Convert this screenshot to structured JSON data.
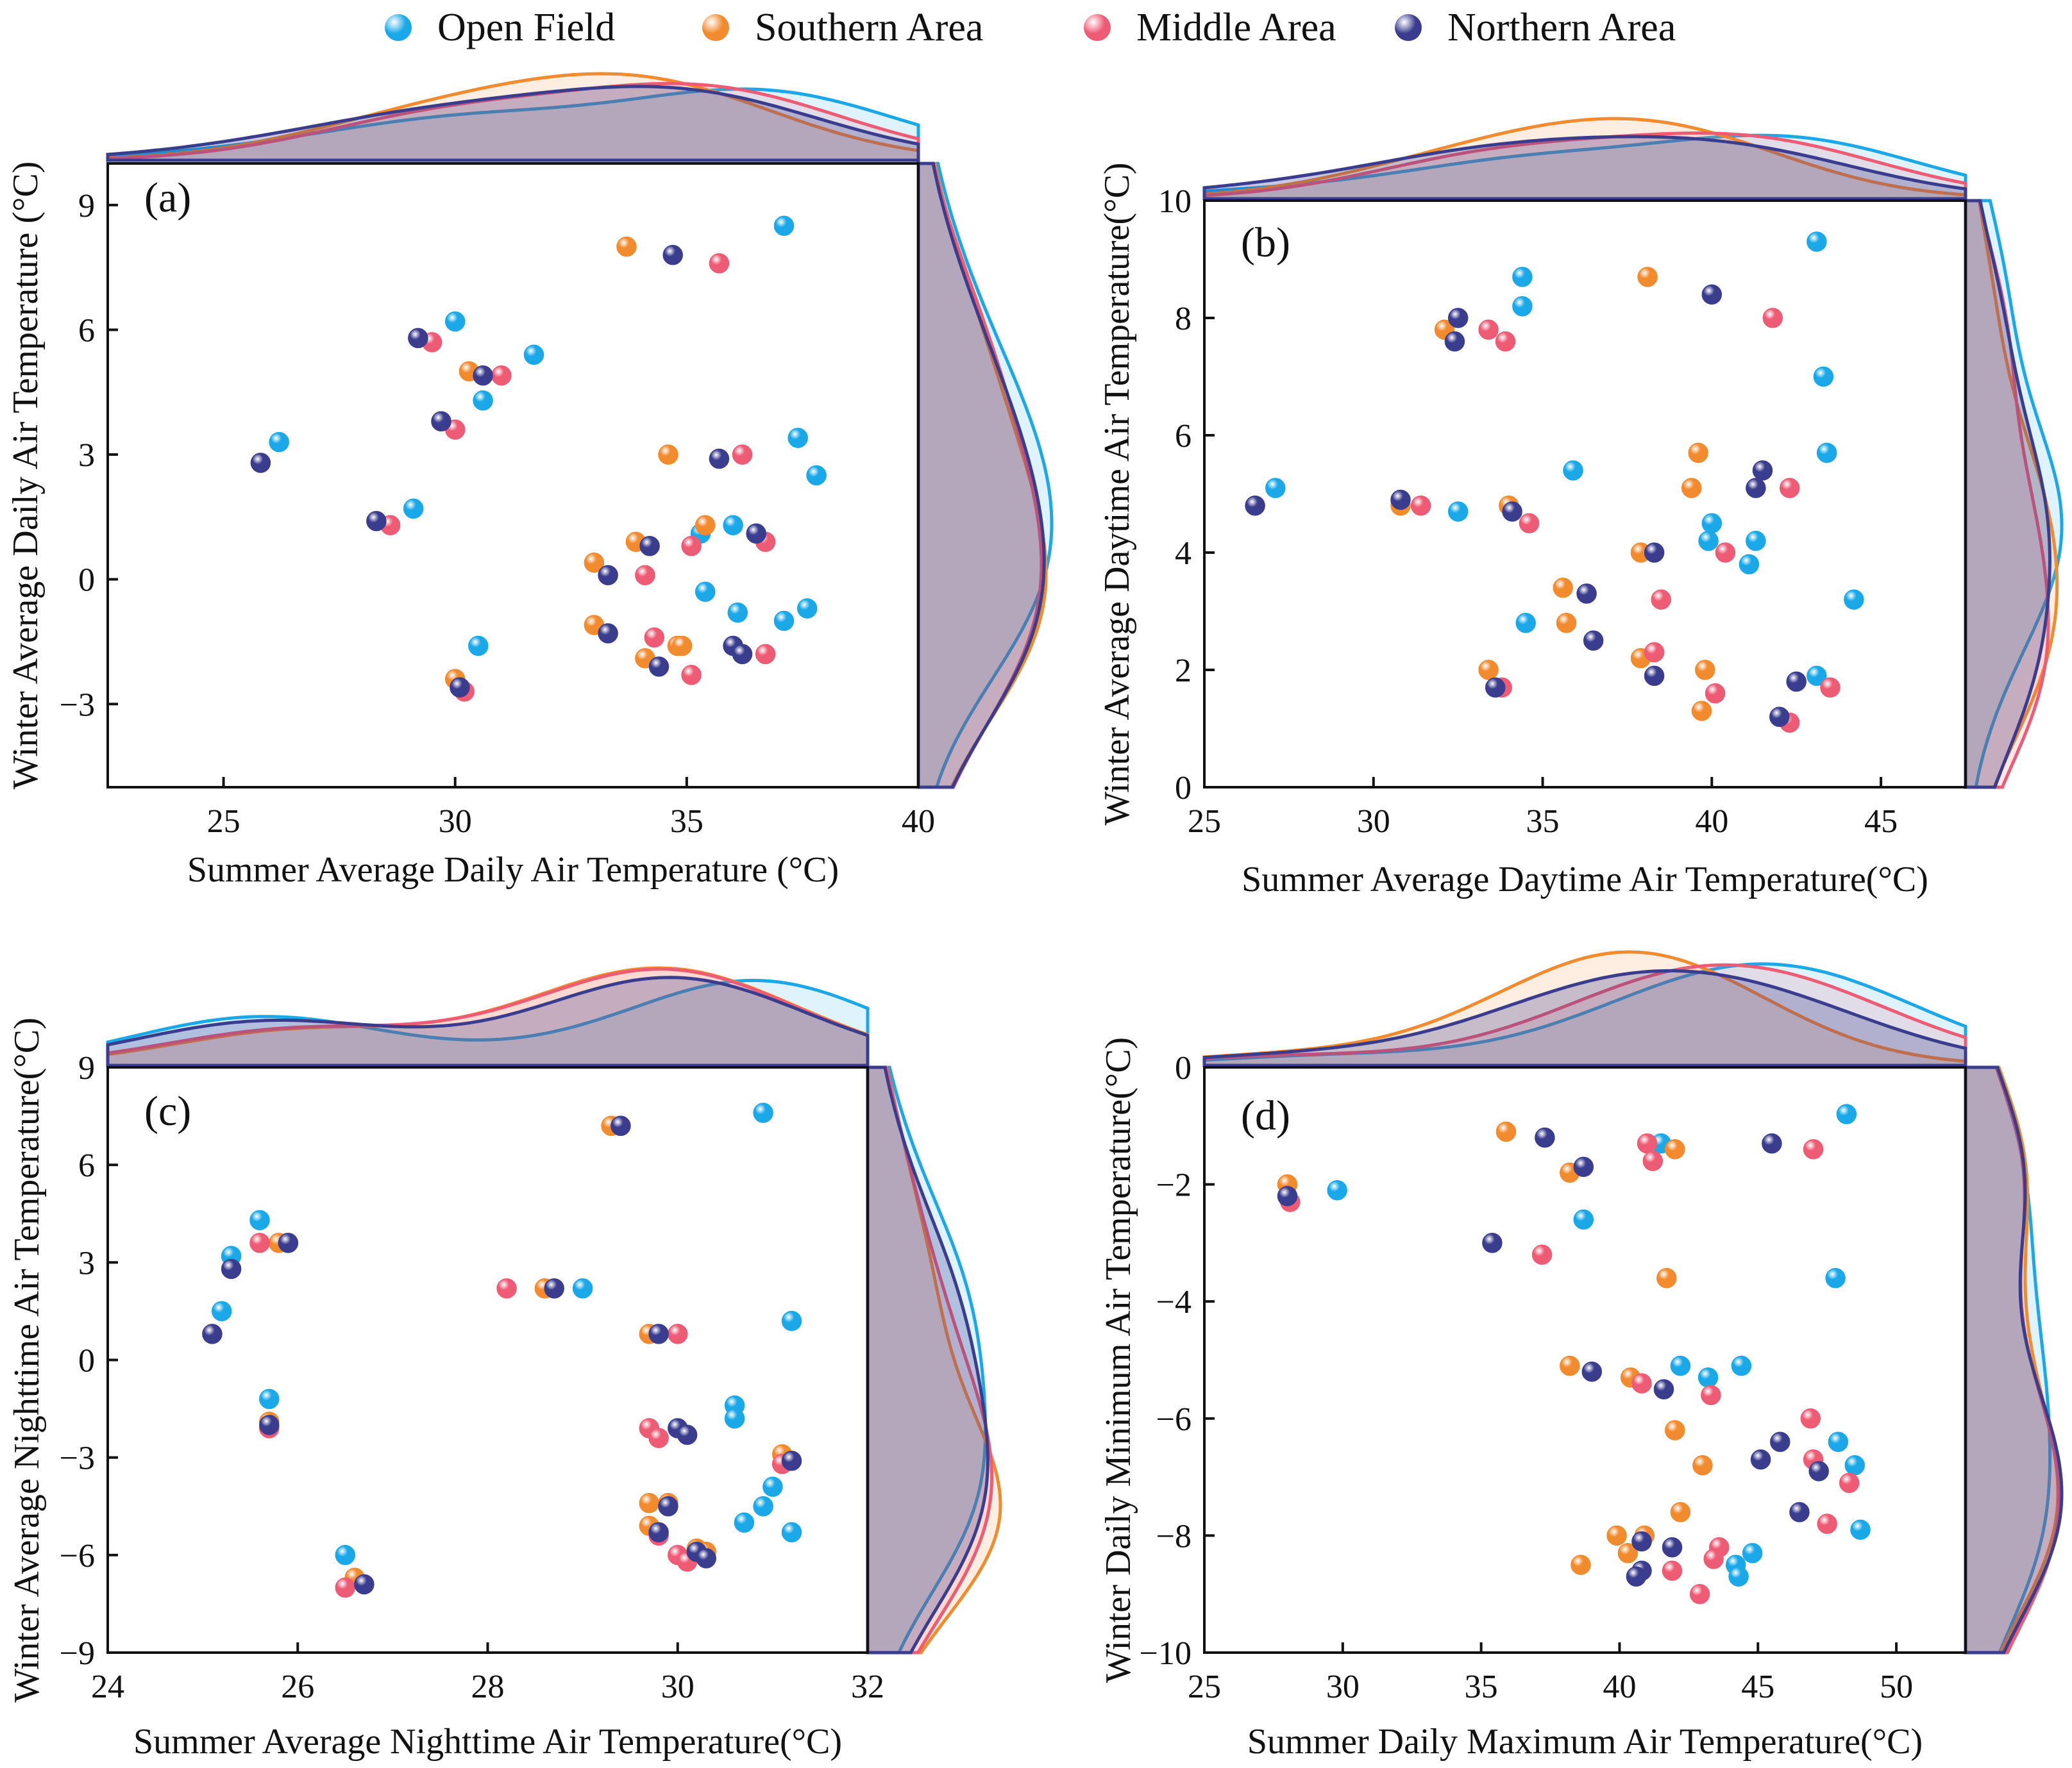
{
  "legend": [
    {
      "name": "Open Field",
      "color": "#1aa8e8"
    },
    {
      "name": "Southern Area",
      "color": "#f28a2e"
    },
    {
      "name": "Middle Area",
      "color": "#ee5b74"
    },
    {
      "name": "Northern Area",
      "color": "#3a3c8e"
    }
  ],
  "chart_data": [
    {
      "type": "scatter",
      "panel_label": "(a)",
      "xlabel": "Summer Average Daily Air Temperature (°C)",
      "ylabel": "Winter Average Daily Air Temperature (°C)",
      "xlim": [
        22.5,
        40
      ],
      "ylim": [
        -5,
        10
      ],
      "xticks": [
        25,
        30,
        35,
        40
      ],
      "yticks": [
        -3,
        0,
        3,
        6,
        9
      ],
      "series": [
        {
          "name": "Open Field",
          "points": [
            [
              37.1,
              8.5
            ],
            [
              30.0,
              6.2
            ],
            [
              31.7,
              5.4
            ],
            [
              30.6,
              4.3
            ],
            [
              26.2,
              3.3
            ],
            [
              37.4,
              3.4
            ],
            [
              37.8,
              2.5
            ],
            [
              29.1,
              1.7
            ],
            [
              36.0,
              1.3
            ],
            [
              35.3,
              1.1
            ],
            [
              35.4,
              -0.3
            ],
            [
              36.1,
              -0.8
            ],
            [
              37.6,
              -0.7
            ],
            [
              37.1,
              -1.0
            ],
            [
              30.5,
              -1.6
            ]
          ]
        },
        {
          "name": "Southern Area",
          "points": [
            [
              33.7,
              8.0
            ],
            [
              29.2,
              5.8
            ],
            [
              30.3,
              5.0
            ],
            [
              29.7,
              3.8
            ],
            [
              34.6,
              3.0
            ],
            [
              28.3,
              1.4
            ],
            [
              33.9,
              0.9
            ],
            [
              35.4,
              1.3
            ],
            [
              33.0,
              0.4
            ],
            [
              33.0,
              -1.1
            ],
            [
              34.1,
              -1.9
            ],
            [
              34.8,
              -1.6
            ],
            [
              34.9,
              -1.6
            ],
            [
              30.0,
              -2.4
            ]
          ]
        },
        {
          "name": "Middle Area",
          "points": [
            [
              35.7,
              7.6
            ],
            [
              29.5,
              5.7
            ],
            [
              31.0,
              4.9
            ],
            [
              30.0,
              3.6
            ],
            [
              36.2,
              3.0
            ],
            [
              28.6,
              1.3
            ],
            [
              35.1,
              0.8
            ],
            [
              36.7,
              0.9
            ],
            [
              34.1,
              0.1
            ],
            [
              34.3,
              -1.4
            ],
            [
              35.1,
              -2.3
            ],
            [
              36.7,
              -1.8
            ],
            [
              30.2,
              -2.7
            ]
          ]
        },
        {
          "name": "Northern Area",
          "points": [
            [
              34.7,
              7.8
            ],
            [
              29.2,
              5.8
            ],
            [
              30.6,
              4.9
            ],
            [
              29.7,
              3.8
            ],
            [
              35.7,
              2.9
            ],
            [
              25.8,
              2.8
            ],
            [
              28.3,
              1.4
            ],
            [
              34.2,
              0.8
            ],
            [
              36.5,
              1.1
            ],
            [
              33.3,
              0.1
            ],
            [
              33.3,
              -1.3
            ],
            [
              34.4,
              -2.1
            ],
            [
              36.0,
              -1.6
            ],
            [
              36.2,
              -1.8
            ],
            [
              30.1,
              -2.6
            ]
          ]
        }
      ]
    },
    {
      "type": "scatter",
      "panel_label": "(b)",
      "xlabel": "Summer Average Daytime Air Temperature(°C)",
      "ylabel": "Winter Average Daytime Air Temperature(°C)",
      "xlim": [
        25,
        47.5
      ],
      "ylim": [
        0,
        10
      ],
      "xticks": [
        25,
        30,
        35,
        40,
        45
      ],
      "yticks": [
        0,
        2,
        4,
        6,
        8,
        10
      ],
      "series": [
        {
          "name": "Open Field",
          "points": [
            [
              43.1,
              9.3
            ],
            [
              34.4,
              8.7
            ],
            [
              34.4,
              8.2
            ],
            [
              43.3,
              7.0
            ],
            [
              43.4,
              5.7
            ],
            [
              35.9,
              5.4
            ],
            [
              27.1,
              5.1
            ],
            [
              32.5,
              4.7
            ],
            [
              40.0,
              4.5
            ],
            [
              39.9,
              4.2
            ],
            [
              41.3,
              4.2
            ],
            [
              41.1,
              3.8
            ],
            [
              44.2,
              3.2
            ],
            [
              34.5,
              2.8
            ],
            [
              43.1,
              1.9
            ]
          ]
        },
        {
          "name": "Southern Area",
          "points": [
            [
              38.1,
              8.7
            ],
            [
              32.1,
              7.8
            ],
            [
              39.6,
              5.7
            ],
            [
              39.4,
              5.1
            ],
            [
              30.8,
              4.8
            ],
            [
              34.0,
              4.8
            ],
            [
              37.9,
              4.0
            ],
            [
              35.6,
              3.4
            ],
            [
              35.7,
              2.8
            ],
            [
              37.9,
              2.2
            ],
            [
              39.8,
              2.0
            ],
            [
              33.4,
              2.0
            ],
            [
              39.7,
              1.3
            ]
          ]
        },
        {
          "name": "Middle Area",
          "points": [
            [
              41.8,
              8.0
            ],
            [
              33.4,
              7.8
            ],
            [
              33.9,
              7.6
            ],
            [
              31.4,
              4.8
            ],
            [
              34.6,
              4.5
            ],
            [
              42.3,
              5.1
            ],
            [
              40.4,
              4.0
            ],
            [
              38.5,
              3.2
            ],
            [
              38.3,
              2.3
            ],
            [
              40.1,
              1.6
            ],
            [
              33.8,
              1.7
            ],
            [
              43.5,
              1.7
            ],
            [
              42.3,
              1.1
            ]
          ]
        },
        {
          "name": "Northern Area",
          "points": [
            [
              40.0,
              8.4
            ],
            [
              32.5,
              8.0
            ],
            [
              32.4,
              7.6
            ],
            [
              26.5,
              4.8
            ],
            [
              30.8,
              4.9
            ],
            [
              34.1,
              4.7
            ],
            [
              41.5,
              5.4
            ],
            [
              41.3,
              5.1
            ],
            [
              38.3,
              4.0
            ],
            [
              36.3,
              3.3
            ],
            [
              36.5,
              2.5
            ],
            [
              38.3,
              1.9
            ],
            [
              33.6,
              1.7
            ],
            [
              42.5,
              1.8
            ],
            [
              42.0,
              1.2
            ]
          ]
        }
      ]
    },
    {
      "type": "scatter",
      "panel_label": "(c)",
      "xlabel": "Summer Average Nighttime Air Temperature(°C)",
      "ylabel": "Winter Average Nighttime Air Temperature(°C)",
      "xlim": [
        24,
        32
      ],
      "ylim": [
        -9,
        9
      ],
      "xticks": [
        24,
        26,
        28,
        30,
        32
      ],
      "yticks": [
        -9,
        -6,
        -3,
        0,
        3,
        6,
        9
      ],
      "series": [
        {
          "name": "Open Field",
          "points": [
            [
              30.9,
              7.6
            ],
            [
              25.6,
              4.3
            ],
            [
              25.3,
              3.2
            ],
            [
              25.2,
              1.5
            ],
            [
              29.0,
              2.2
            ],
            [
              31.2,
              1.2
            ],
            [
              25.7,
              -1.2
            ],
            [
              30.6,
              -1.4
            ],
            [
              30.6,
              -1.8
            ],
            [
              31.0,
              -3.9
            ],
            [
              30.9,
              -4.5
            ],
            [
              30.7,
              -5.0
            ],
            [
              31.2,
              -5.3
            ],
            [
              26.5,
              -6.0
            ]
          ]
        },
        {
          "name": "Southern Area",
          "points": [
            [
              29.3,
              7.2
            ],
            [
              25.8,
              3.6
            ],
            [
              28.6,
              2.2
            ],
            [
              29.7,
              0.8
            ],
            [
              25.7,
              -1.9
            ],
            [
              31.1,
              -2.9
            ],
            [
              29.7,
              -4.4
            ],
            [
              29.7,
              -5.1
            ],
            [
              30.2,
              -5.8
            ],
            [
              30.3,
              -5.9
            ],
            [
              26.6,
              -6.7
            ],
            [
              29.9,
              -4.4
            ]
          ]
        },
        {
          "name": "Middle Area",
          "points": [
            [
              29.4,
              7.2
            ],
            [
              25.6,
              3.6
            ],
            [
              28.2,
              2.2
            ],
            [
              30.0,
              0.8
            ],
            [
              25.7,
              -2.1
            ],
            [
              29.7,
              -2.1
            ],
            [
              29.8,
              -2.4
            ],
            [
              31.1,
              -3.2
            ],
            [
              29.8,
              -5.4
            ],
            [
              30.0,
              -6.0
            ],
            [
              30.1,
              -6.2
            ],
            [
              26.5,
              -7.0
            ]
          ]
        },
        {
          "name": "Northern Area",
          "points": [
            [
              29.4,
              7.2
            ],
            [
              25.9,
              3.6
            ],
            [
              25.3,
              2.8
            ],
            [
              28.7,
              2.2
            ],
            [
              25.1,
              0.8
            ],
            [
              29.8,
              0.8
            ],
            [
              25.7,
              -2.0
            ],
            [
              30.0,
              -2.1
            ],
            [
              30.1,
              -2.3
            ],
            [
              31.2,
              -3.1
            ],
            [
              29.9,
              -4.5
            ],
            [
              29.8,
              -5.3
            ],
            [
              30.2,
              -5.9
            ],
            [
              30.3,
              -6.1
            ],
            [
              26.7,
              -6.9
            ]
          ]
        }
      ]
    },
    {
      "type": "scatter",
      "panel_label": "(d)",
      "xlabel": "Summer Daily Maximum Air Temperature(°C)",
      "ylabel": "Winter Daily Minimum Air Temperature(°C)",
      "xlim": [
        25,
        52.5
      ],
      "ylim": [
        -10,
        0
      ],
      "xticks": [
        25,
        30,
        35,
        40,
        45,
        50
      ],
      "yticks": [
        -10,
        -8,
        -6,
        -4,
        -2,
        0
      ],
      "series": [
        {
          "name": "Open Field",
          "points": [
            [
              48.2,
              -0.8
            ],
            [
              41.5,
              -1.3
            ],
            [
              29.8,
              -2.1
            ],
            [
              38.7,
              -2.6
            ],
            [
              47.8,
              -3.6
            ],
            [
              42.2,
              -5.1
            ],
            [
              44.4,
              -5.1
            ],
            [
              43.2,
              -5.3
            ],
            [
              47.9,
              -6.4
            ],
            [
              48.5,
              -6.8
            ],
            [
              48.7,
              -7.9
            ],
            [
              44.8,
              -8.3
            ],
            [
              44.2,
              -8.5
            ],
            [
              44.3,
              -8.7
            ]
          ]
        },
        {
          "name": "Southern Area",
          "points": [
            [
              35.9,
              -1.1
            ],
            [
              42.0,
              -1.4
            ],
            [
              28.0,
              -2.0
            ],
            [
              38.2,
              -1.8
            ],
            [
              41.7,
              -3.6
            ],
            [
              38.2,
              -5.1
            ],
            [
              40.4,
              -5.3
            ],
            [
              42.0,
              -6.2
            ],
            [
              43.0,
              -6.8
            ],
            [
              42.2,
              -7.6
            ],
            [
              39.9,
              -8.0
            ],
            [
              40.9,
              -8.0
            ],
            [
              40.3,
              -8.3
            ],
            [
              38.6,
              -8.5
            ]
          ]
        },
        {
          "name": "Middle Area",
          "points": [
            [
              41.0,
              -1.3
            ],
            [
              47.0,
              -1.4
            ],
            [
              41.2,
              -1.6
            ],
            [
              28.1,
              -2.3
            ],
            [
              37.2,
              -3.2
            ],
            [
              40.8,
              -5.4
            ],
            [
              43.3,
              -5.6
            ],
            [
              46.9,
              -6.0
            ],
            [
              47.0,
              -6.7
            ],
            [
              48.3,
              -7.1
            ],
            [
              47.5,
              -7.8
            ],
            [
              43.6,
              -8.2
            ],
            [
              43.4,
              -8.4
            ],
            [
              41.9,
              -8.6
            ],
            [
              42.9,
              -9.0
            ]
          ]
        },
        {
          "name": "Northern Area",
          "points": [
            [
              37.3,
              -1.2
            ],
            [
              45.5,
              -1.3
            ],
            [
              38.7,
              -1.7
            ],
            [
              28.0,
              -2.2
            ],
            [
              35.4,
              -3.0
            ],
            [
              39.0,
              -5.2
            ],
            [
              41.6,
              -5.5
            ],
            [
              45.8,
              -6.4
            ],
            [
              45.1,
              -6.7
            ],
            [
              47.2,
              -6.9
            ],
            [
              46.5,
              -7.6
            ],
            [
              40.8,
              -8.1
            ],
            [
              41.9,
              -8.2
            ],
            [
              40.8,
              -8.6
            ],
            [
              40.6,
              -8.7
            ]
          ]
        }
      ]
    }
  ]
}
